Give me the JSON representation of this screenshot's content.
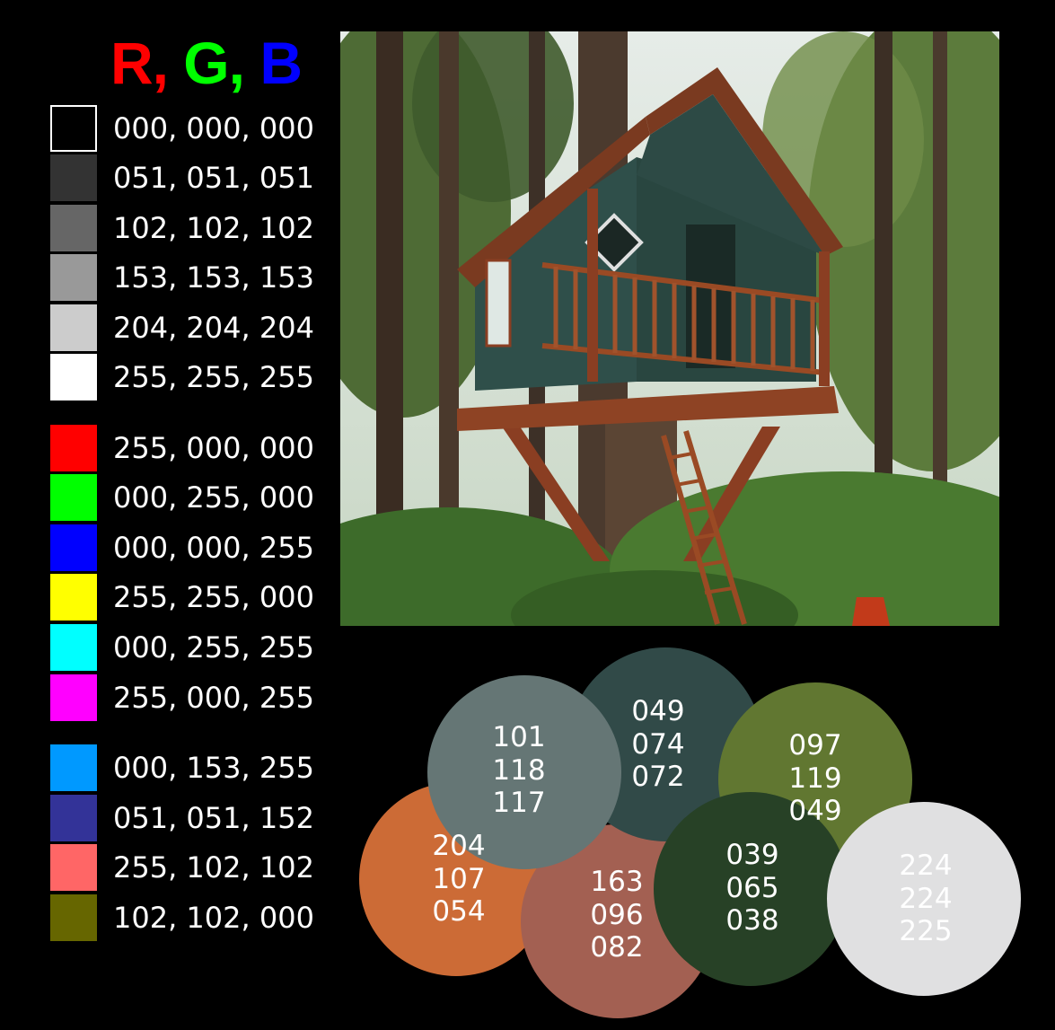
{
  "header": {
    "r": "R",
    "sep1": ", ",
    "g": "G",
    "sep2": ", ",
    "b": "B",
    "r_color": "#ff0000",
    "g_color": "#00ff00",
    "b_color": "#0000ff"
  },
  "swatches": [
    {
      "color": "#000000",
      "label": "000, 000, 000"
    },
    {
      "color": "#333333",
      "label": "051, 051, 051"
    },
    {
      "color": "#666666",
      "label": "102, 102, 102"
    },
    {
      "color": "#999999",
      "label": "153, 153, 153"
    },
    {
      "color": "#cccccc",
      "label": "204, 204, 204"
    },
    {
      "color": "#ffffff",
      "label": "255, 255, 255"
    },
    {
      "color": "#ff0000",
      "label": "255, 000, 000"
    },
    {
      "color": "#00ff00",
      "label": "000, 255, 000"
    },
    {
      "color": "#0000ff",
      "label": "000, 000, 255"
    },
    {
      "color": "#ffff00",
      "label": "255, 255, 000"
    },
    {
      "color": "#00ffff",
      "label": "000, 255, 255"
    },
    {
      "color": "#ff00ff",
      "label": "255, 000, 255"
    },
    {
      "color": "#0099ff",
      "label": "000, 153, 255"
    },
    {
      "color": "#333398",
      "label": "051, 051, 152"
    },
    {
      "color": "#ff6666",
      "label": "255, 102, 102"
    },
    {
      "color": "#666600",
      "label": "102, 102, 000"
    }
  ],
  "photo": {
    "subject": "treehouse-photo"
  },
  "circles": [
    {
      "color": "#cc6b36",
      "lines": [
        "204",
        "107",
        "054"
      ]
    },
    {
      "color": "#a36052",
      "lines": [
        "163",
        "096",
        "082"
      ]
    },
    {
      "color": "#314a48",
      "lines": [
        "049",
        "074",
        "072"
      ]
    },
    {
      "color": "#617731",
      "lines": [
        "097",
        "119",
        "049"
      ]
    },
    {
      "color": "#274126",
      "lines": [
        "039",
        "065",
        "038"
      ]
    },
    {
      "color": "#657675",
      "lines": [
        "101",
        "118",
        "117"
      ]
    },
    {
      "color": "#e0e0e1",
      "lines": [
        "224",
        "224",
        "225"
      ]
    }
  ]
}
